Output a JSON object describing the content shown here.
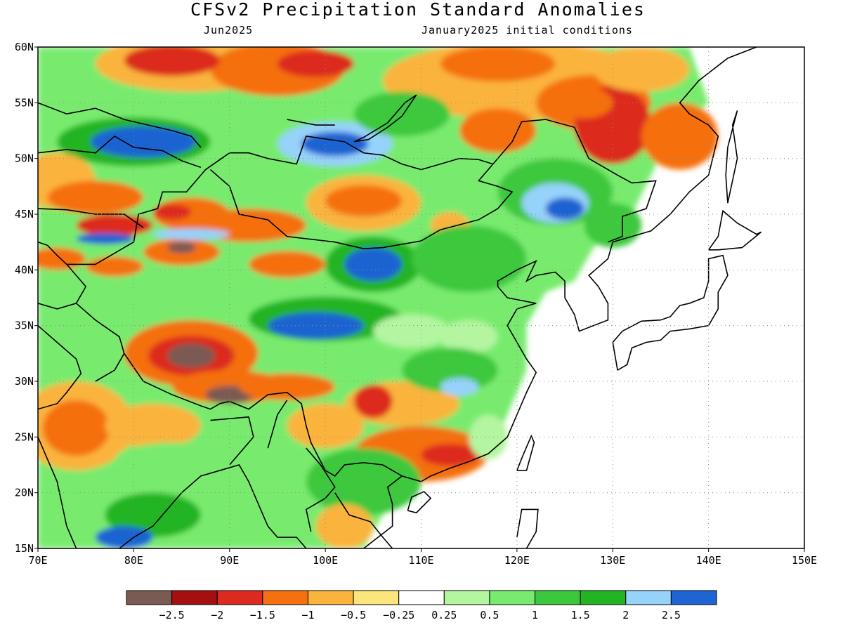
{
  "title": "CFSv2 Precipitation Standard Anomalies",
  "subtitle_left": "Jun2025",
  "subtitle_right": "January2025 initial conditions",
  "map": {
    "lon_range": [
      70,
      150
    ],
    "lat_range": [
      15,
      60
    ],
    "lon_ticks": [
      "70E",
      "80E",
      "90E",
      "100E",
      "110E",
      "120E",
      "130E",
      "140E",
      "150E"
    ],
    "lat_ticks": [
      "60N",
      "55N",
      "50N",
      "45N",
      "40N",
      "35N",
      "30N",
      "25N",
      "20N",
      "15N"
    ],
    "gridlines": "dotted",
    "land_mask": "ocean cells blank"
  },
  "legend": {
    "colors": [
      "#7a5a52",
      "#a50f0f",
      "#dc2a1e",
      "#f5700f",
      "#fab43c",
      "#fae67a",
      "#ffffff",
      "#b4f5a0",
      "#78eb6e",
      "#3cc83c",
      "#23b423",
      "#96d2fa",
      "#1e64d2"
    ],
    "labels": [
      "-2.5",
      "-2",
      "-1.5",
      "-1",
      "-0.5",
      "-0.25",
      "0.25",
      "0.5",
      "1",
      "1.5",
      "2",
      "2.5"
    ]
  }
}
